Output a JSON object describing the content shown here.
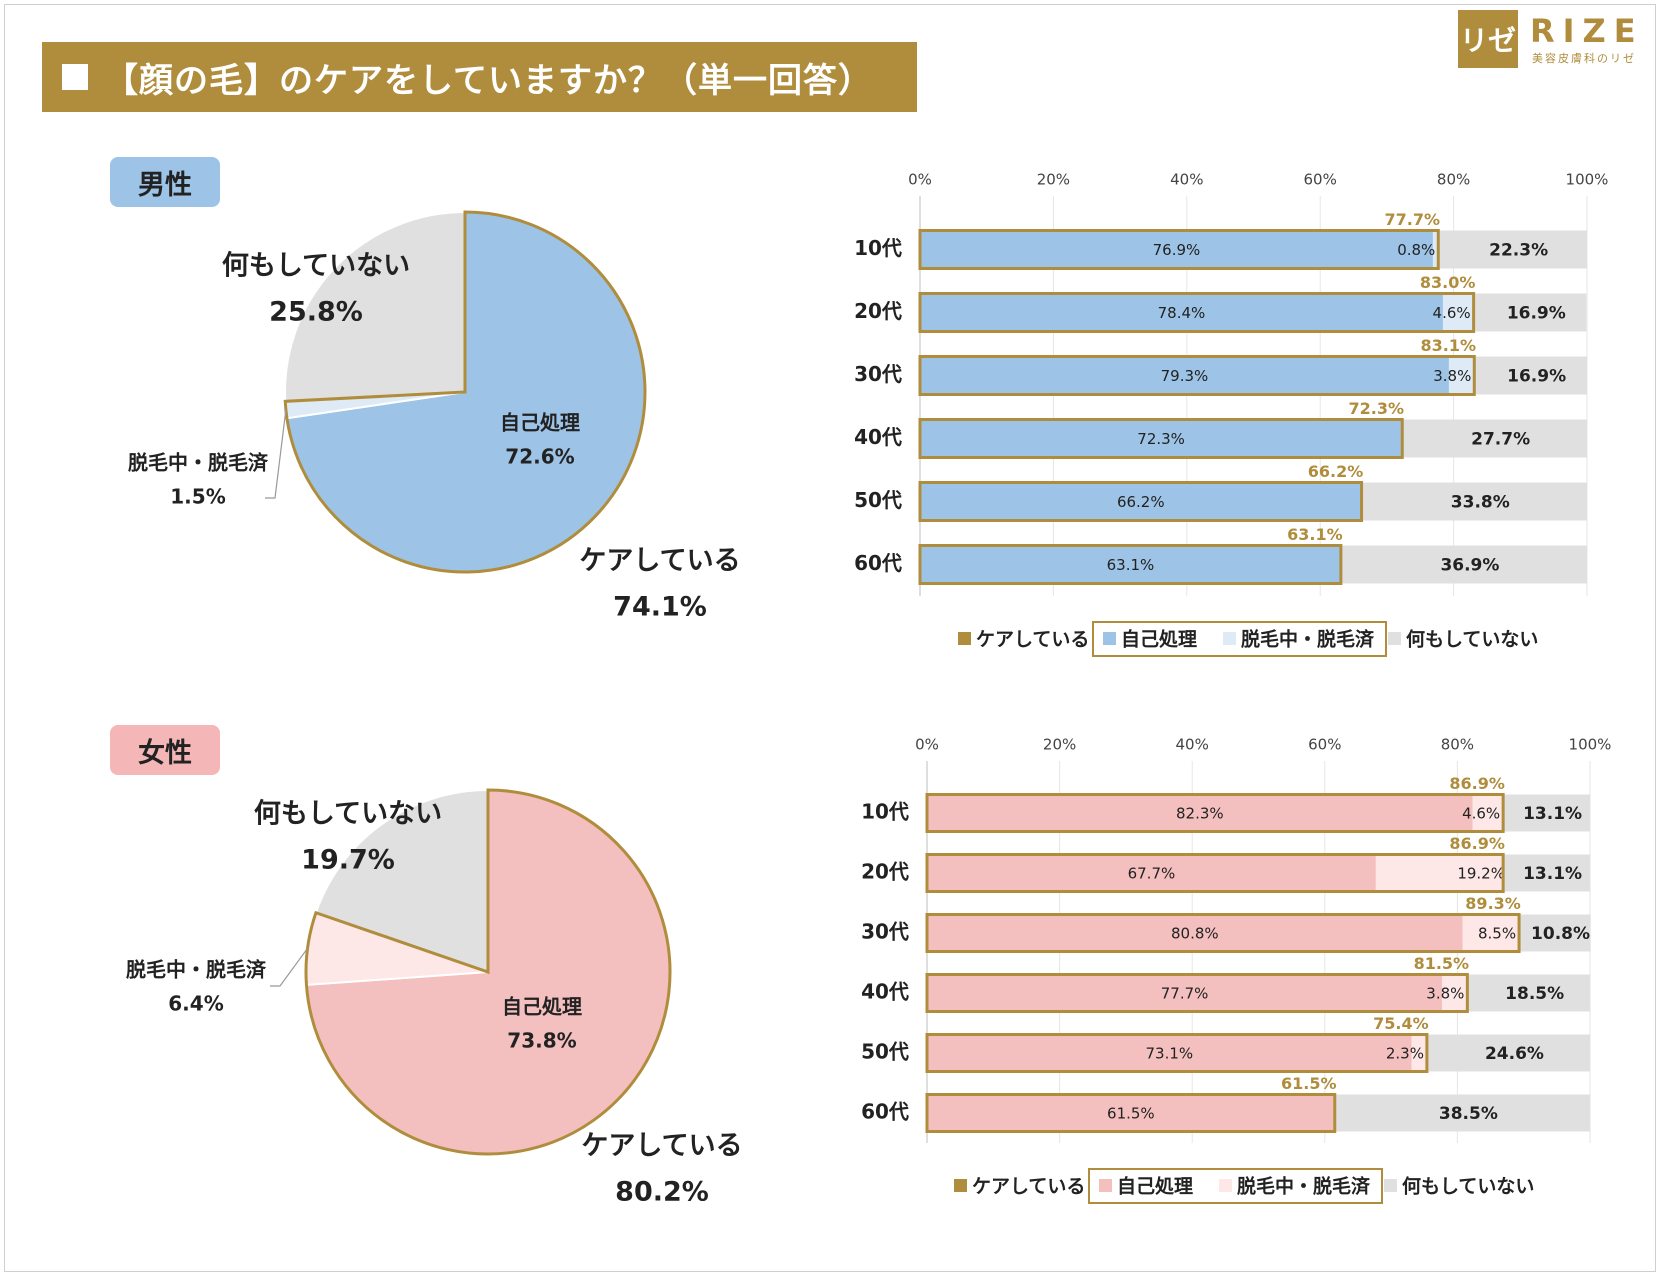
{
  "title": "【顔の毛】のケアをしていますか？（単一回答）",
  "logo": {
    "mark": "リゼ",
    "word": "RIZE",
    "sub": "美容皮膚科のリゼ"
  },
  "colors": {
    "gold": "#b08d3c",
    "male_self": "#9dc3e6",
    "male_removal": "#deebf7",
    "female_self": "#f4bfbf",
    "female_removal": "#fde7e7",
    "none": "#e0e0e0"
  },
  "chart_data": [
    {
      "type": "pie",
      "id": "male-pie",
      "badge": "男性",
      "slices": [
        {
          "name": "自己処理",
          "value": 72.6,
          "label": "72.6%"
        },
        {
          "name": "脱毛中・脱毛済",
          "value": 1.5,
          "label": "1.5%"
        },
        {
          "name": "何もしていない",
          "value": 25.8,
          "label": "25.8%"
        }
      ],
      "care_label": "ケアしている",
      "care_value": "74.1%"
    },
    {
      "type": "bar",
      "id": "male-bar",
      "orientation": "horizontal-stacked",
      "x_ticks": [
        "0%",
        "20%",
        "40%",
        "60%",
        "80%",
        "100%"
      ],
      "xlim": [
        0,
        100
      ],
      "categories": [
        "10代",
        "20代",
        "30代",
        "40代",
        "50代",
        "60代"
      ],
      "series": [
        {
          "name": "自己処理",
          "values": [
            76.9,
            78.4,
            79.3,
            72.3,
            66.2,
            63.1
          ],
          "labels": [
            "76.9%",
            "78.4%",
            "79.3%",
            "72.3%",
            "66.2%",
            "63.1%"
          ]
        },
        {
          "name": "脱毛中・脱毛済",
          "values": [
            0.8,
            4.6,
            3.8,
            0,
            0,
            0
          ],
          "labels": [
            "0.8%",
            "4.6%",
            "3.8%",
            "",
            "",
            ""
          ]
        },
        {
          "name": "何もしていない",
          "values": [
            22.3,
            16.9,
            16.9,
            27.7,
            33.8,
            36.9
          ],
          "labels": [
            "22.3%",
            "16.9%",
            "16.9%",
            "27.7%",
            "33.8%",
            "36.9%"
          ]
        }
      ],
      "care_totals": [
        "77.7%",
        "83.0%",
        "83.1%",
        "72.3%",
        "66.2%",
        "63.1%"
      ],
      "legend": [
        "ケアしている",
        "自己処理",
        "脱毛中・脱毛済",
        "何もしていない"
      ]
    },
    {
      "type": "pie",
      "id": "female-pie",
      "badge": "女性",
      "slices": [
        {
          "name": "自己処理",
          "value": 73.8,
          "label": "73.8%"
        },
        {
          "name": "脱毛中・脱毛済",
          "value": 6.4,
          "label": "6.4%"
        },
        {
          "name": "何もしていない",
          "value": 19.7,
          "label": "19.7%"
        }
      ],
      "care_label": "ケアしている",
      "care_value": "80.2%"
    },
    {
      "type": "bar",
      "id": "female-bar",
      "orientation": "horizontal-stacked",
      "x_ticks": [
        "0%",
        "20%",
        "40%",
        "60%",
        "80%",
        "100%"
      ],
      "xlim": [
        0,
        100
      ],
      "categories": [
        "10代",
        "20代",
        "30代",
        "40代",
        "50代",
        "60代"
      ],
      "series": [
        {
          "name": "自己処理",
          "values": [
            82.3,
            67.7,
            80.8,
            77.7,
            73.1,
            61.5
          ],
          "labels": [
            "82.3%",
            "67.7%",
            "80.8%",
            "77.7%",
            "73.1%",
            "61.5%"
          ]
        },
        {
          "name": "脱毛中・脱毛済",
          "values": [
            4.6,
            19.2,
            8.5,
            3.8,
            2.3,
            0
          ],
          "labels": [
            "4.6%",
            "19.2%",
            "8.5%",
            "3.8%",
            "2.3%",
            ""
          ]
        },
        {
          "name": "何もしていない",
          "values": [
            13.1,
            13.1,
            10.8,
            18.5,
            24.6,
            38.5
          ],
          "labels": [
            "13.1%",
            "13.1%",
            "10.8%",
            "18.5%",
            "24.6%",
            "38.5%"
          ]
        }
      ],
      "care_totals": [
        "86.9%",
        "86.9%",
        "89.3%",
        "81.5%",
        "75.4%",
        "61.5%"
      ],
      "legend": [
        "ケアしている",
        "自己処理",
        "脱毛中・脱毛済",
        "何もしていない"
      ]
    }
  ]
}
